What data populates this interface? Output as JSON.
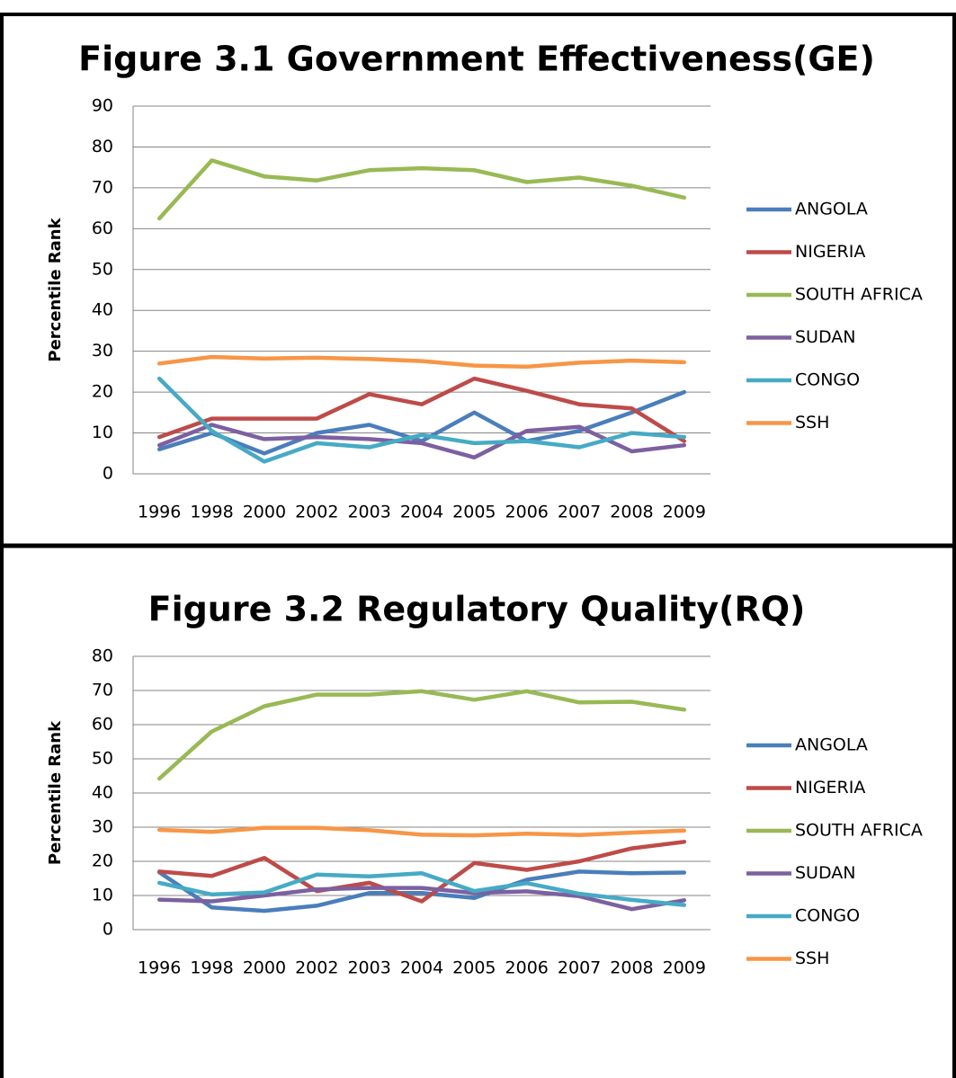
{
  "chart_data": [
    {
      "type": "line",
      "title": "Figure 3.1 Government Effectiveness(GE)",
      "y_label": "Percentile Rank",
      "categories": [
        "1996",
        "1998",
        "2000",
        "2002",
        "2003",
        "2004",
        "2005",
        "2006",
        "2007",
        "2008",
        "2009"
      ],
      "ylim": [
        0,
        90
      ],
      "yticks": [
        0,
        10,
        20,
        30,
        40,
        50,
        60,
        70,
        80,
        90
      ],
      "grid": true,
      "legend": "right",
      "series": [
        {
          "name": "ANGOLA",
          "color": "#4a7ebb",
          "values": [
            6,
            10,
            5,
            10,
            12,
            8,
            15,
            8,
            10.5,
            15,
            20
          ]
        },
        {
          "name": "NIGERIA",
          "color": "#be4b48",
          "values": [
            9,
            13.5,
            13.5,
            13.5,
            19.5,
            17,
            23.3,
            20.3,
            17,
            16,
            8
          ]
        },
        {
          "name": "SOUTH AFRICA",
          "color": "#98b954",
          "values": [
            62.5,
            76.7,
            72.8,
            71.8,
            74.3,
            74.8,
            74.3,
            71.4,
            72.5,
            70.5,
            67.6
          ]
        },
        {
          "name": "SUDAN",
          "color": "#7d60a0",
          "values": [
            7,
            12,
            8.5,
            9,
            8.5,
            7.5,
            4,
            10.5,
            11.5,
            5.5,
            7
          ]
        },
        {
          "name": "CONGO",
          "color": "#46aac5",
          "values": [
            23.3,
            10.5,
            3,
            7.5,
            6.5,
            9.5,
            7.5,
            8,
            6.5,
            10,
            9
          ]
        },
        {
          "name": "SSH",
          "color": "#f79646",
          "values": [
            27,
            28.6,
            28.2,
            28.4,
            28.1,
            27.6,
            26.5,
            26.2,
            27.2,
            27.7,
            27.3
          ]
        }
      ]
    },
    {
      "type": "line",
      "title": "Figure 3.2 Regulatory Quality(RQ)",
      "y_label": "Percentile Rank",
      "categories": [
        "1996",
        "1998",
        "2000",
        "2002",
        "2003",
        "2004",
        "2005",
        "2006",
        "2007",
        "2008",
        "2009"
      ],
      "ylim": [
        0,
        80
      ],
      "yticks": [
        0,
        10,
        20,
        30,
        40,
        50,
        60,
        70,
        80
      ],
      "grid": true,
      "legend": "right",
      "series": [
        {
          "name": "ANGOLA",
          "color": "#4a7ebb",
          "values": [
            16.8,
            6.5,
            5.5,
            7,
            10.7,
            10.7,
            9.3,
            14.6,
            17,
            16.5,
            16.7
          ]
        },
        {
          "name": "NIGERIA",
          "color": "#be4b48",
          "values": [
            17,
            15.7,
            21,
            11.3,
            13.7,
            8.3,
            19.5,
            17.5,
            20,
            23.8,
            25.7
          ]
        },
        {
          "name": "SOUTH AFRICA",
          "color": "#98b954",
          "values": [
            44.2,
            58,
            65.4,
            68.8,
            68.8,
            69.8,
            67.3,
            69.8,
            66.5,
            66.7,
            64.4
          ]
        },
        {
          "name": "SUDAN",
          "color": "#7d60a0",
          "values": [
            8.8,
            8.3,
            10,
            11.8,
            12.2,
            12.2,
            10.7,
            11.2,
            9.8,
            6,
            8.6
          ]
        },
        {
          "name": "CONGO",
          "color": "#46aac5",
          "values": [
            13.7,
            10.3,
            10.9,
            16.1,
            15.6,
            16.5,
            11.3,
            13.6,
            10.5,
            8.7,
            7.2
          ]
        },
        {
          "name": "SSH",
          "color": "#f79646",
          "values": [
            29.2,
            28.6,
            29.8,
            29.8,
            29.1,
            27.8,
            27.6,
            28.1,
            27.7,
            28.4,
            29
          ]
        }
      ]
    }
  ]
}
